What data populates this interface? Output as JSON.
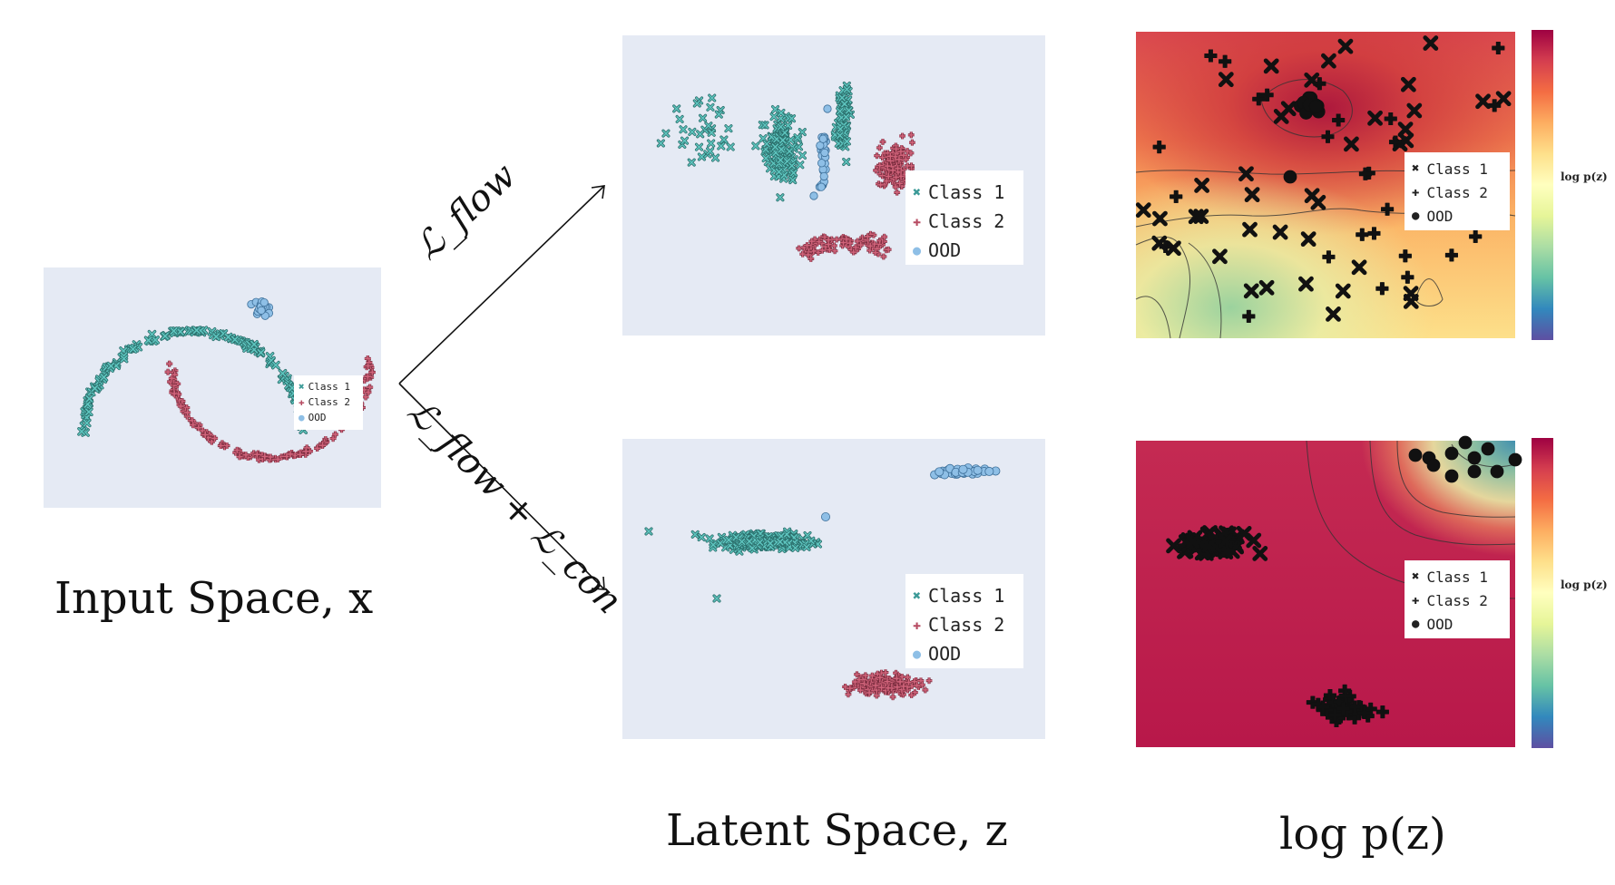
{
  "captions": {
    "input": "Input Space, x",
    "latent": "Latent Space, z",
    "density": "log p(z)"
  },
  "arrows": {
    "upper_label": "ℒ_flow",
    "lower_label": "ℒ_flow + ℒ_con"
  },
  "colorbar_label": "log p(z)",
  "legend": [
    "Class 1",
    "Class 2",
    "OOD"
  ],
  "colors": {
    "class1": "#5ec5bf",
    "class2": "#d0637a",
    "ood": "#8ebfe6",
    "panel_bg": "#e5eaf4"
  },
  "chart_data": [
    {
      "type": "scatter",
      "panel": "input-space",
      "series": [
        {
          "name": "Class 1",
          "marker": "x",
          "region": "upper crescent (two-moons)"
        },
        {
          "name": "Class 2",
          "marker": "plus",
          "region": "lower crescent (two-moons)"
        },
        {
          "name": "OOD",
          "marker": "circle",
          "region": "small cluster top-right"
        }
      ]
    },
    {
      "type": "scatter",
      "panel": "latent-flow",
      "series": [
        {
          "name": "Class 1",
          "marker": "x",
          "region": "left scattered band"
        },
        {
          "name": "Class 2",
          "marker": "plus",
          "region": "center-right curved band"
        },
        {
          "name": "OOD",
          "marker": "circle",
          "region": "thin vertical streak between classes"
        }
      ]
    },
    {
      "type": "scatter",
      "panel": "latent-flow-con",
      "series": [
        {
          "name": "Class 1",
          "marker": "x",
          "region": "left horizontal cluster"
        },
        {
          "name": "Class 2",
          "marker": "plus",
          "region": "bottom-right cluster"
        },
        {
          "name": "OOD",
          "marker": "circle",
          "region": "top-right cluster"
        }
      ]
    },
    {
      "type": "heatmap",
      "panel": "density-flow",
      "colormap": "Spectral",
      "series": [
        {
          "name": "Class 1",
          "marker": "x"
        },
        {
          "name": "Class 2",
          "marker": "plus"
        },
        {
          "name": "OOD",
          "marker": "circle"
        }
      ]
    },
    {
      "type": "heatmap",
      "panel": "density-flow-con",
      "colormap": "Spectral",
      "series": [
        {
          "name": "Class 1",
          "marker": "x"
        },
        {
          "name": "Class 2",
          "marker": "plus"
        },
        {
          "name": "OOD",
          "marker": "circle"
        }
      ]
    }
  ]
}
